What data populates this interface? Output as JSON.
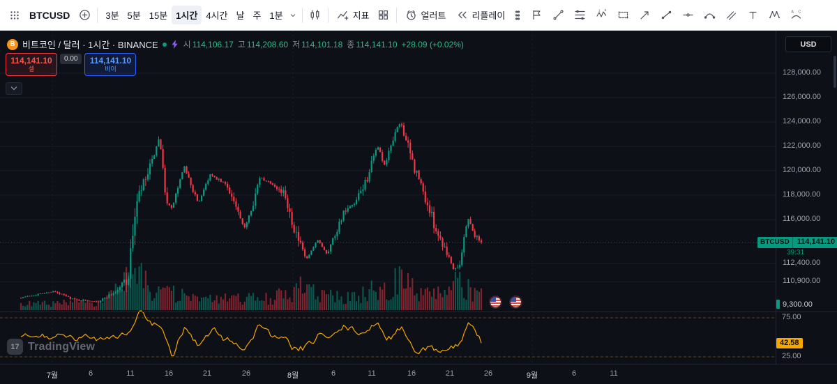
{
  "toolbar": {
    "symbol": "BTCUSD",
    "intervals": [
      "3분",
      "5분",
      "15분",
      "1시간",
      "4시간",
      "날",
      "주",
      "1분"
    ],
    "selected_interval": "1시간",
    "indicators_label": "지표",
    "alert_label": "얼러트",
    "replay_label": "리플레이"
  },
  "header": {
    "logo_letter": "B",
    "title": "비트코인 / 달러 · 1시간 · BINANCE",
    "o_label": "시",
    "o": "114,106.17",
    "h_label": "고",
    "h": "114,208.60",
    "l_label": "저",
    "l": "114,101.18",
    "c_label": "종",
    "c": "114,141.10",
    "change": "+28.09 (+0.02%)"
  },
  "trade_panel": {
    "sell_price": "114,141.10",
    "sell_label": "셀",
    "spread": "0.00",
    "buy_price": "114,141.10",
    "buy_label": "바이"
  },
  "price_axis": {
    "currency": "USD",
    "ticks": [
      {
        "label": "128,000.00",
        "value": 128000
      },
      {
        "label": "126,000.00",
        "value": 126000
      },
      {
        "label": "124,000.00",
        "value": 124000
      },
      {
        "label": "122,000.00",
        "value": 122000
      },
      {
        "label": "120,000.00",
        "value": 120000
      },
      {
        "label": "118,000.00",
        "value": 118000
      },
      {
        "label": "116,000.00",
        "value": 116000
      },
      {
        "label": "112,400.00",
        "value": 112400
      },
      {
        "label": "110,900.00",
        "value": 110900
      }
    ],
    "current_symbol": "BTCUSD",
    "current_price": "114,141.10",
    "countdown": "39:31",
    "volume_value": "9,300.00",
    "osc_upper": "75.00",
    "osc_value": "42.58",
    "osc_lower": "25.00"
  },
  "time_axis": [
    "7월",
    "6",
    "11",
    "16",
    "21",
    "26",
    "8월",
    "6",
    "11",
    "16",
    "21",
    "26",
    "9월",
    "6",
    "11"
  ],
  "watermark": {
    "logo_text": "17",
    "brand": "TradingView"
  },
  "chart_data": {
    "type": "candlestick",
    "symbol": "BTCUSD",
    "exchange": "BINANCE",
    "interval": "1시간",
    "last_price": 114141.1,
    "ohlc_current": {
      "open": 114106.17,
      "high": 114208.6,
      "low": 114101.18,
      "close": 114141.1,
      "change": 28.09,
      "change_pct": 0.02
    },
    "ylim": [
      109300,
      129000
    ],
    "x_range": [
      "7월 초",
      "8월 25"
    ],
    "colors": {
      "up": "#089981",
      "down": "#f23645",
      "oscillator": "#f7a600"
    },
    "price_keyframes": [
      [
        0,
        109600
      ],
      [
        0.07,
        110100
      ],
      [
        0.12,
        109400
      ],
      [
        0.17,
        109300
      ],
      [
        0.21,
        110200
      ],
      [
        0.235,
        111500
      ],
      [
        0.245,
        116000
      ],
      [
        0.26,
        118300
      ],
      [
        0.275,
        119600
      ],
      [
        0.3,
        122500
      ],
      [
        0.315,
        118000
      ],
      [
        0.325,
        116600
      ],
      [
        0.355,
        120300
      ],
      [
        0.385,
        117300
      ],
      [
        0.41,
        119700
      ],
      [
        0.45,
        118700
      ],
      [
        0.485,
        115200
      ],
      [
        0.52,
        119400
      ],
      [
        0.55,
        118900
      ],
      [
        0.575,
        117900
      ],
      [
        0.6,
        114500
      ],
      [
        0.62,
        112700
      ],
      [
        0.645,
        114300
      ],
      [
        0.665,
        113200
      ],
      [
        0.7,
        116500
      ],
      [
        0.725,
        117200
      ],
      [
        0.75,
        119200
      ],
      [
        0.775,
        122100
      ],
      [
        0.79,
        120300
      ],
      [
        0.81,
        122900
      ],
      [
        0.825,
        124000
      ],
      [
        0.85,
        120700
      ],
      [
        0.865,
        119200
      ],
      [
        0.885,
        117000
      ],
      [
        0.905,
        114900
      ],
      [
        0.925,
        113400
      ],
      [
        0.94,
        111900
      ],
      [
        0.955,
        112600
      ],
      [
        0.97,
        116300
      ],
      [
        0.985,
        114700
      ],
      [
        1,
        114141.1
      ]
    ],
    "volume_keyframes": [
      [
        0,
        0.1
      ],
      [
        0.1,
        0.12
      ],
      [
        0.18,
        0.14
      ],
      [
        0.23,
        0.55
      ],
      [
        0.25,
        0.75
      ],
      [
        0.28,
        0.45
      ],
      [
        0.3,
        0.5
      ],
      [
        0.33,
        0.3
      ],
      [
        0.4,
        0.18
      ],
      [
        0.47,
        0.22
      ],
      [
        0.52,
        0.2
      ],
      [
        0.58,
        0.3
      ],
      [
        0.61,
        0.45
      ],
      [
        0.64,
        0.3
      ],
      [
        0.7,
        0.22
      ],
      [
        0.75,
        0.3
      ],
      [
        0.78,
        0.5
      ],
      [
        0.81,
        0.45
      ],
      [
        0.825,
        1.0
      ],
      [
        0.84,
        0.5
      ],
      [
        0.88,
        0.3
      ],
      [
        0.92,
        0.3
      ],
      [
        0.945,
        0.5
      ],
      [
        0.97,
        0.4
      ],
      [
        1,
        0.28
      ]
    ],
    "oscillator": {
      "value": 42.58,
      "upper_band": 75,
      "lower_band": 25
    }
  }
}
